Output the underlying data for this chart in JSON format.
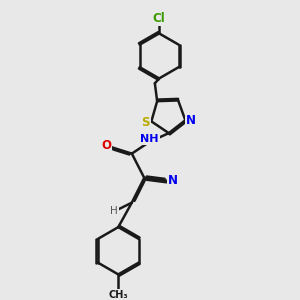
{
  "bg_color": "#e8e8e8",
  "bond_color": "#1a1a1a",
  "bond_width": 1.8,
  "dbo": 0.055,
  "atom_labels": {
    "Cl": {
      "color": "#3a9a00",
      "fontsize": 8.5
    },
    "S": {
      "color": "#bbaa00",
      "fontsize": 8.5
    },
    "N": {
      "color": "#0000ee",
      "fontsize": 8.5
    },
    "O": {
      "color": "#dd0000",
      "fontsize": 8.5
    },
    "H": {
      "color": "#444444",
      "fontsize": 7.5
    },
    "CN": {
      "color": "#0000ee",
      "fontsize": 8.5
    },
    "NH": {
      "color": "#0000ee",
      "fontsize": 8.5
    }
  },
  "xlim": [
    2.0,
    8.5
  ],
  "ylim": [
    0.5,
    10.5
  ]
}
